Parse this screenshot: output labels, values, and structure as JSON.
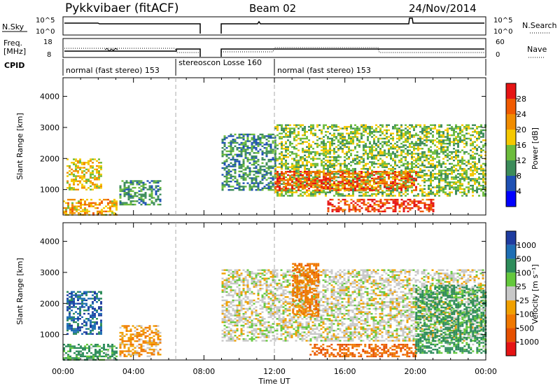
{
  "header": {
    "title": "Pykkvibaer (fitACF)",
    "beam": "Beam 02",
    "date": "24/Nov/2014"
  },
  "summary_panel": {
    "nsky_label": "N.Sky",
    "nsky_ticks": [
      "10^5",
      "10^0"
    ],
    "nsearch_label": "N.Search",
    "freq_label_1": "Freq.",
    "freq_label_2": "[MHz]",
    "freq_ticks": [
      "18",
      "8"
    ],
    "nave_ticks": [
      "60",
      "0"
    ],
    "nave_label": "Nave",
    "cpid_label": "CPID",
    "cpid_segments": [
      {
        "label": "normal (fast stereo) 153",
        "start_hour": 0.0,
        "end_hour": 6.4
      },
      {
        "label": "stereoscon Losse 160",
        "start_hour": 6.4,
        "end_hour": 12.0
      },
      {
        "label": "normal (fast stereo) 153",
        "start_hour": 12.0,
        "end_hour": 24.0
      }
    ],
    "data_gap_hours": [
      7.8,
      9.0
    ]
  },
  "power_colorbar": {
    "label": "Power [dB]",
    "ticks": [
      "4",
      "8",
      "12",
      "16",
      "20",
      "24",
      "28"
    ],
    "colors": [
      "#0000ff",
      "#1e50b4",
      "#3c8c5a",
      "#6cbc3c",
      "#f5c800",
      "#f08c00",
      "#f05a00",
      "#e61414"
    ]
  },
  "velocity_colorbar": {
    "label": "Velocity [m s⁻¹]",
    "ticks": [
      "1000",
      "500",
      "100",
      "25",
      "-25",
      "-100",
      "-500",
      "-1000"
    ],
    "colors": [
      "#1e3ca0",
      "#1e6eb4",
      "#2d8c5a",
      "#64c83c",
      "#c8c8c8",
      "#f0a000",
      "#f07800",
      "#e65000",
      "#e61414"
    ]
  },
  "axes": {
    "ylabel": "Slant Range [km]",
    "xlabel": "Time UT",
    "xticks": [
      "00:00",
      "04:00",
      "08:00",
      "12:00",
      "16:00",
      "20:00",
      "00:00"
    ],
    "yticks": [
      "1000",
      "2000",
      "3000",
      "4000"
    ]
  },
  "chart_data": [
    {
      "type": "heatmap",
      "title": "Power",
      "xlabel": "Time UT",
      "ylabel": "Slant Range [km]",
      "xlim": [
        0,
        24
      ],
      "ylim": [
        180,
        4600
      ],
      "colorbar_label": "Power [dB]",
      "colorbar_ticks": [
        4,
        8,
        12,
        16,
        20,
        24,
        28
      ],
      "dashed_vertical_lines_hours": [
        6.4,
        12.0
      ],
      "echo_regions": [
        {
          "t_start": 0.2,
          "t_end": 2.2,
          "range_start": 1000,
          "range_end": 2000,
          "power_db": 18
        },
        {
          "t_start": 0.0,
          "t_end": 3.0,
          "range_start": 200,
          "range_end": 700,
          "power_db": 20
        },
        {
          "t_start": 3.2,
          "t_end": 5.5,
          "range_start": 500,
          "range_end": 1300,
          "power_db": 10
        },
        {
          "t_start": 9.0,
          "t_end": 12.0,
          "range_start": 1000,
          "range_end": 2800,
          "power_db": 10
        },
        {
          "t_start": 12.0,
          "t_end": 24.0,
          "range_start": 800,
          "range_end": 3100,
          "power_db": 14
        },
        {
          "t_start": 12.0,
          "t_end": 20.0,
          "range_start": 1000,
          "range_end": 1600,
          "power_db": 26
        },
        {
          "t_start": 15.0,
          "t_end": 21.0,
          "range_start": 300,
          "range_end": 700,
          "power_db": 28
        }
      ]
    },
    {
      "type": "heatmap",
      "title": "Velocity",
      "xlabel": "Time UT",
      "ylabel": "Slant Range [km]",
      "xlim": [
        0,
        24
      ],
      "ylim": [
        180,
        4600
      ],
      "colorbar_label": "Velocity [m s⁻¹]",
      "colorbar_ticks": [
        1000,
        500,
        100,
        25,
        -25,
        -100,
        -500,
        -1000
      ],
      "dashed_vertical_lines_hours": [
        6.4,
        12.0
      ],
      "echo_regions": [
        {
          "t_start": 0.2,
          "t_end": 2.2,
          "range_start": 1000,
          "range_end": 2400,
          "velocity": 800
        },
        {
          "t_start": 0.0,
          "t_end": 3.0,
          "range_start": 200,
          "range_end": 700,
          "velocity": 150
        },
        {
          "t_start": 3.2,
          "t_end": 5.5,
          "range_start": 300,
          "range_end": 1300,
          "velocity": -80
        },
        {
          "t_start": 9.0,
          "t_end": 24.0,
          "range_start": 800,
          "range_end": 3100,
          "velocity": 0
        },
        {
          "t_start": 13.0,
          "t_end": 14.5,
          "range_start": 1600,
          "range_end": 3300,
          "velocity": -300
        },
        {
          "t_start": 14.0,
          "t_end": 20.0,
          "range_start": 300,
          "range_end": 700,
          "velocity": -500
        },
        {
          "t_start": 20.0,
          "t_end": 24.0,
          "range_start": 400,
          "range_end": 2600,
          "velocity": 200
        }
      ]
    }
  ]
}
